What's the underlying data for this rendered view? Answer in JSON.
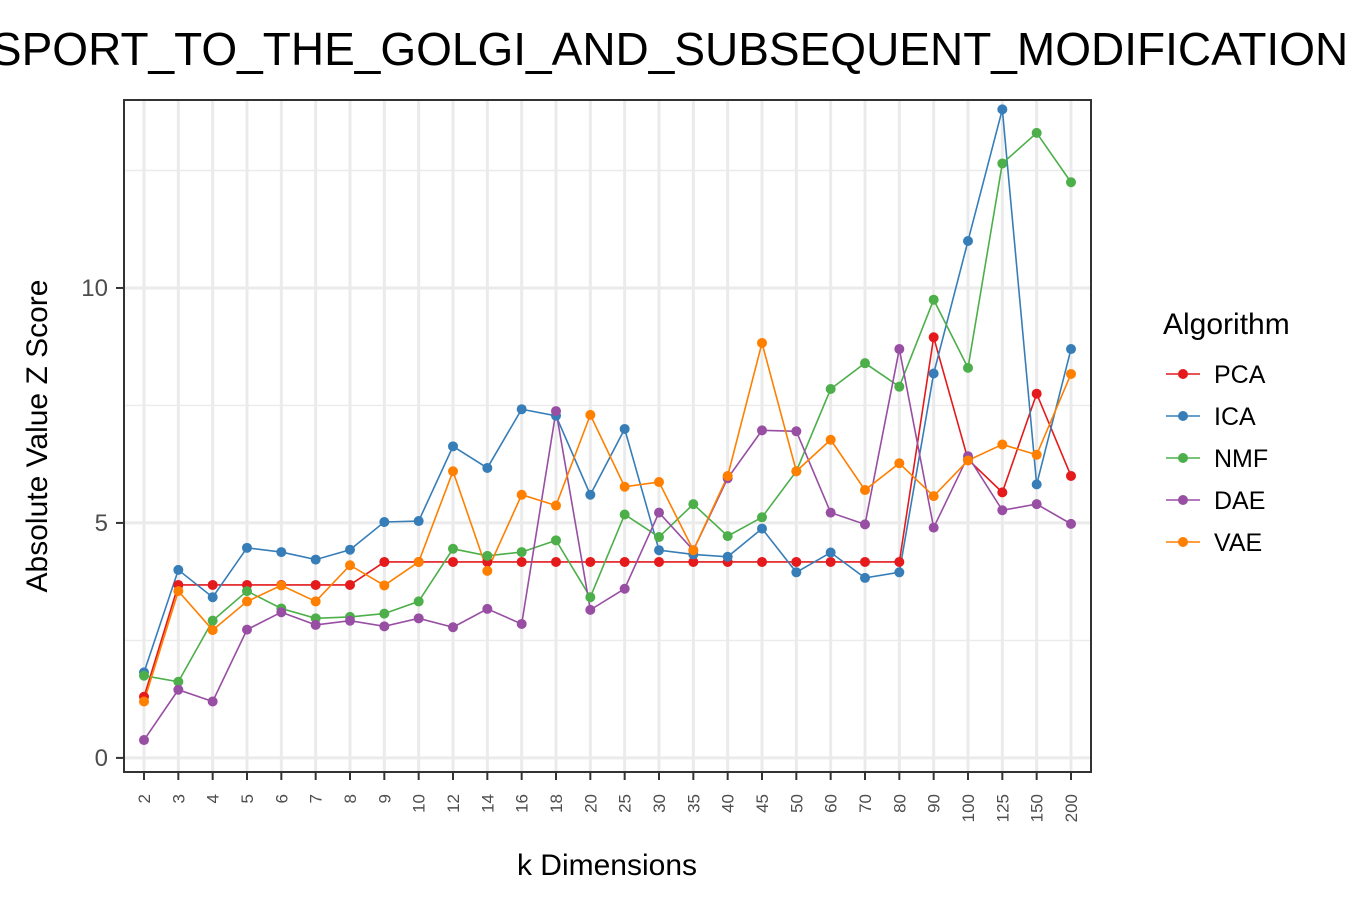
{
  "chart_data": {
    "type": "line",
    "title": "TRANSPORT_TO_THE_GOLGI_AND_SUBSEQUENT_MODIFICATION",
    "xlabel": "k Dimensions",
    "ylabel": "Absolute Value Z Score",
    "categories": [
      "2",
      "3",
      "4",
      "5",
      "6",
      "7",
      "8",
      "9",
      "10",
      "12",
      "14",
      "16",
      "18",
      "20",
      "25",
      "30",
      "35",
      "40",
      "45",
      "50",
      "60",
      "70",
      "80",
      "90",
      "100",
      "125",
      "150",
      "200"
    ],
    "ylim": [
      -0.3,
      14.0
    ],
    "yticks": [
      0,
      5,
      10
    ],
    "ytick_labels": [
      "0",
      "5",
      "10"
    ],
    "grid": true,
    "legend_title": "Algorithm",
    "legend_position": "right",
    "series": [
      {
        "name": "PCA",
        "color": "#E41A1C",
        "values": [
          1.3,
          3.68,
          3.68,
          3.68,
          3.68,
          3.68,
          3.68,
          4.17,
          4.17,
          4.17,
          4.17,
          4.17,
          4.17,
          4.17,
          4.17,
          4.17,
          4.17,
          4.17,
          4.17,
          4.17,
          4.17,
          4.17,
          4.17,
          8.95,
          6.35,
          5.65,
          7.75,
          6.0
        ]
      },
      {
        "name": "ICA",
        "color": "#377EB8",
        "values": [
          1.82,
          4.0,
          3.42,
          4.47,
          4.38,
          4.22,
          4.43,
          5.02,
          5.04,
          6.63,
          6.17,
          7.42,
          7.28,
          5.6,
          7.0,
          4.42,
          4.33,
          4.28,
          4.88,
          3.95,
          4.37,
          3.83,
          3.95,
          8.18,
          11.0,
          13.8,
          5.82,
          8.7
        ]
      },
      {
        "name": "NMF",
        "color": "#4DAF4A",
        "values": [
          1.75,
          1.62,
          2.92,
          3.55,
          3.18,
          2.97,
          3.0,
          3.07,
          3.33,
          4.45,
          4.3,
          4.38,
          4.63,
          3.42,
          5.18,
          4.7,
          5.4,
          4.72,
          5.12,
          6.1,
          7.85,
          8.4,
          7.9,
          9.75,
          8.3,
          12.65,
          13.3,
          12.25
        ]
      },
      {
        "name": "DAE",
        "color": "#984EA3",
        "values": [
          0.38,
          1.45,
          1.2,
          2.73,
          3.1,
          2.83,
          2.92,
          2.8,
          2.97,
          2.78,
          3.17,
          2.85,
          7.38,
          3.15,
          3.6,
          5.22,
          4.42,
          5.95,
          6.97,
          6.95,
          5.22,
          4.97,
          8.7,
          4.9,
          6.42,
          5.27,
          5.4,
          4.98
        ]
      },
      {
        "name": "VAE",
        "color": "#FF7F00",
        "values": [
          1.2,
          3.55,
          2.72,
          3.33,
          3.67,
          3.33,
          4.1,
          3.67,
          4.17,
          6.1,
          3.98,
          5.6,
          5.37,
          7.3,
          5.77,
          5.87,
          4.42,
          6.0,
          8.83,
          6.1,
          6.77,
          5.7,
          6.27,
          5.57,
          6.33,
          6.67,
          6.45,
          8.17
        ]
      }
    ]
  }
}
